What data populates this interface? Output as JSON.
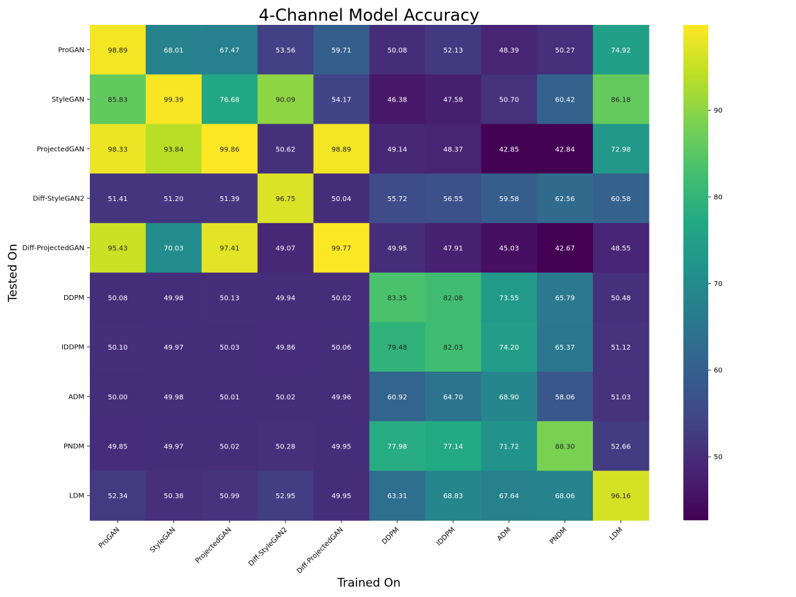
{
  "chart_data": {
    "type": "heatmap",
    "title": "4-Channel Model Accuracy",
    "xlabel": "Trained On",
    "ylabel": "Tested On",
    "x_categories": [
      "ProGAN",
      "StyleGAN",
      "ProjectedGAN",
      "Diff-StyleGAN2",
      "Diff-ProjectedGAN",
      "DDPM",
      "IDDPM",
      "ADM",
      "PNDM",
      "LDM"
    ],
    "y_categories": [
      "ProGAN",
      "StyleGAN",
      "ProjectedGAN",
      "Diff-StyleGAN2",
      "Diff-ProjectedGAN",
      "DDPM",
      "IDDPM",
      "ADM",
      "PNDM",
      "LDM"
    ],
    "values": [
      [
        98.89,
        68.01,
        67.47,
        53.56,
        59.71,
        50.08,
        52.13,
        48.39,
        50.27,
        74.92
      ],
      [
        85.83,
        99.39,
        76.68,
        90.09,
        54.17,
        46.38,
        47.58,
        50.7,
        60.42,
        86.18
      ],
      [
        98.33,
        93.84,
        99.86,
        50.62,
        98.89,
        49.14,
        48.37,
        42.85,
        42.84,
        72.98
      ],
      [
        51.41,
        51.2,
        51.39,
        96.75,
        50.04,
        55.72,
        56.55,
        59.58,
        62.56,
        60.58
      ],
      [
        95.43,
        70.03,
        97.41,
        49.07,
        99.77,
        49.95,
        47.91,
        45.03,
        42.67,
        48.55
      ],
      [
        50.08,
        49.98,
        50.13,
        49.94,
        50.02,
        83.35,
        82.08,
        73.55,
        65.79,
        50.48
      ],
      [
        50.1,
        49.97,
        50.03,
        49.86,
        50.06,
        79.48,
        82.03,
        74.2,
        65.37,
        51.12
      ],
      [
        50.0,
        49.98,
        50.01,
        50.02,
        49.96,
        60.92,
        64.7,
        68.9,
        58.06,
        51.03
      ],
      [
        49.85,
        49.97,
        50.02,
        50.28,
        49.95,
        77.98,
        77.14,
        71.72,
        88.3,
        52.66
      ],
      [
        52.34,
        50.38,
        50.99,
        52.95,
        49.95,
        63.31,
        68.83,
        67.64,
        68.06,
        96.16
      ]
    ],
    "value_format": "2 decimals",
    "colormap": "viridis",
    "colorbar": {
      "min": 42.67,
      "max": 99.86,
      "ticks": [
        50,
        60,
        70,
        80,
        90
      ]
    },
    "grid": false,
    "legend": "colorbar-right"
  }
}
